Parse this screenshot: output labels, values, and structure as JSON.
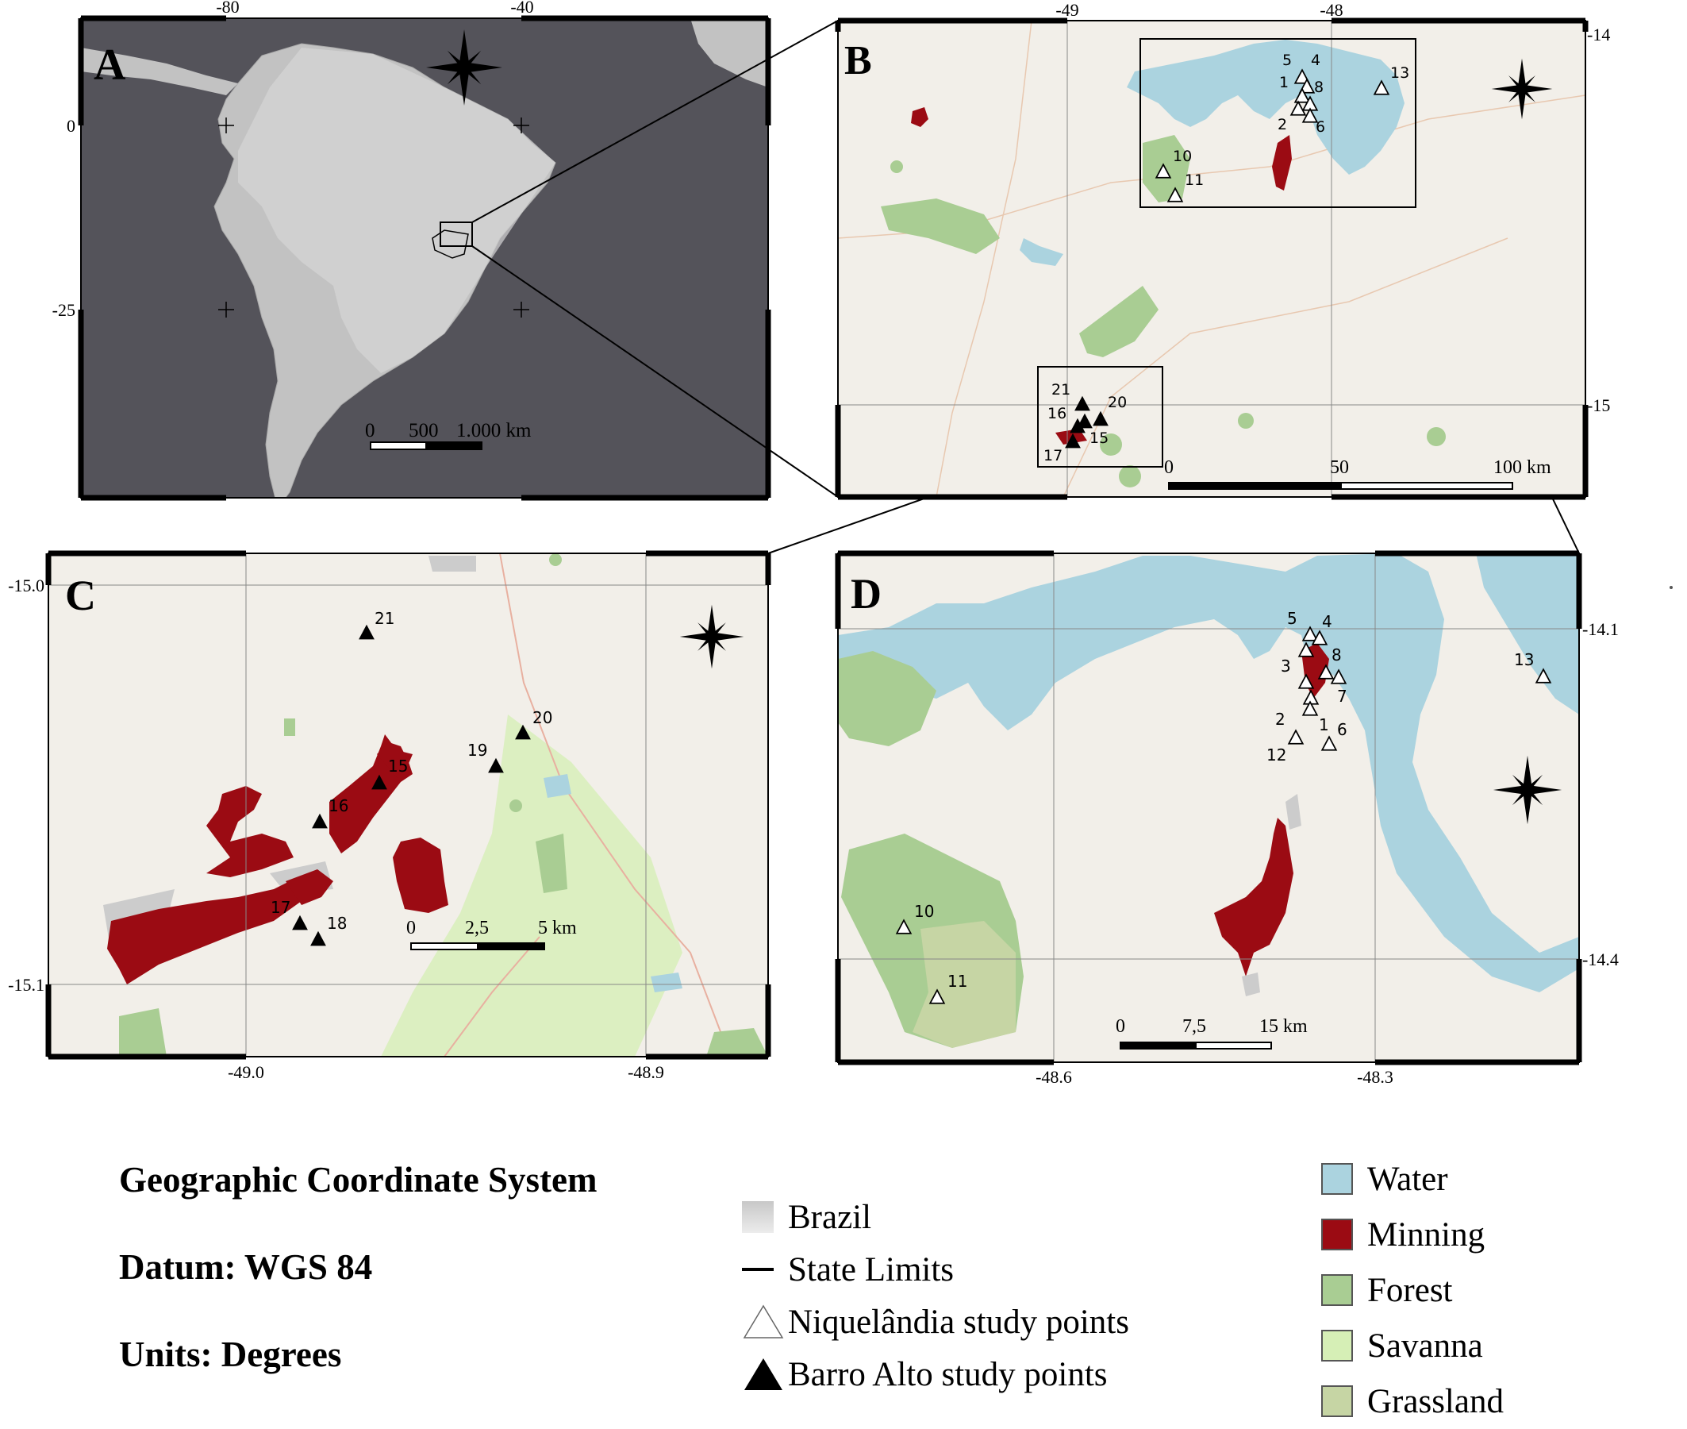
{
  "colors": {
    "water": "#abd3df",
    "mining": "#9b0b13",
    "forest": "#a9cd93",
    "savanna": "#d6efb6",
    "grassland": "#c6d5a4",
    "basemap": "#f2efe9",
    "ocean_dark": "#54535a",
    "continent": "#c2c2c2",
    "brazil": "#d6d6d6"
  },
  "panel_a": {
    "letter": "A",
    "ticks_top": [
      "-80",
      "-40"
    ],
    "ticks_left": [
      "0",
      "-25"
    ],
    "scale": {
      "labels": [
        "0",
        "500",
        "1.000 km"
      ]
    },
    "north_arrow": "compass-rose-icon"
  },
  "panel_b": {
    "letter": "B",
    "ticks_top": [
      "-49",
      "-48"
    ],
    "ticks_right": [
      "-14",
      "-15"
    ],
    "scale": {
      "labels": [
        "0",
        "50",
        "100 km"
      ]
    },
    "points_open": [
      "5",
      "4",
      "1",
      "8",
      "2",
      "6",
      "13",
      "10",
      "11"
    ],
    "points_filled": [
      "21",
      "16",
      "20",
      "15",
      "17"
    ],
    "north_arrow": "compass-rose-icon"
  },
  "panel_c": {
    "letter": "C",
    "ticks_left": [
      "-15.0",
      "-15.1"
    ],
    "ticks_bottom": [
      "-49.0",
      "-48.9"
    ],
    "scale": {
      "labels": [
        "0",
        "2,5",
        "5 km"
      ]
    },
    "points_filled": [
      "21",
      "20",
      "19",
      "15",
      "16",
      "17",
      "18"
    ],
    "north_arrow": "compass-rose-icon"
  },
  "panel_d": {
    "letter": "D",
    "ticks_right": [
      "-14.1",
      "-14.4"
    ],
    "ticks_bottom": [
      "-48.6",
      "-48.3"
    ],
    "scale": {
      "labels": [
        "0",
        "7,5",
        "15 km"
      ]
    },
    "points_open": [
      "5",
      "4",
      "8",
      "3",
      "7",
      "2",
      "1",
      "6",
      "12",
      "13",
      "10",
      "11"
    ],
    "north_arrow": "compass-rose-icon"
  },
  "legend": {
    "coord_system": "Geographic Coordinate System",
    "datum": "Datum: WGS 84",
    "units": "Units: Degrees",
    "brazil": "Brazil",
    "state_limits": "State Limits",
    "niquelandia": "Niquelândia study points",
    "barro_alto": "Barro Alto study points",
    "water": "Water",
    "mining": "Minning",
    "forest": "Forest",
    "savanna": "Savanna",
    "grassland": "Grassland"
  }
}
